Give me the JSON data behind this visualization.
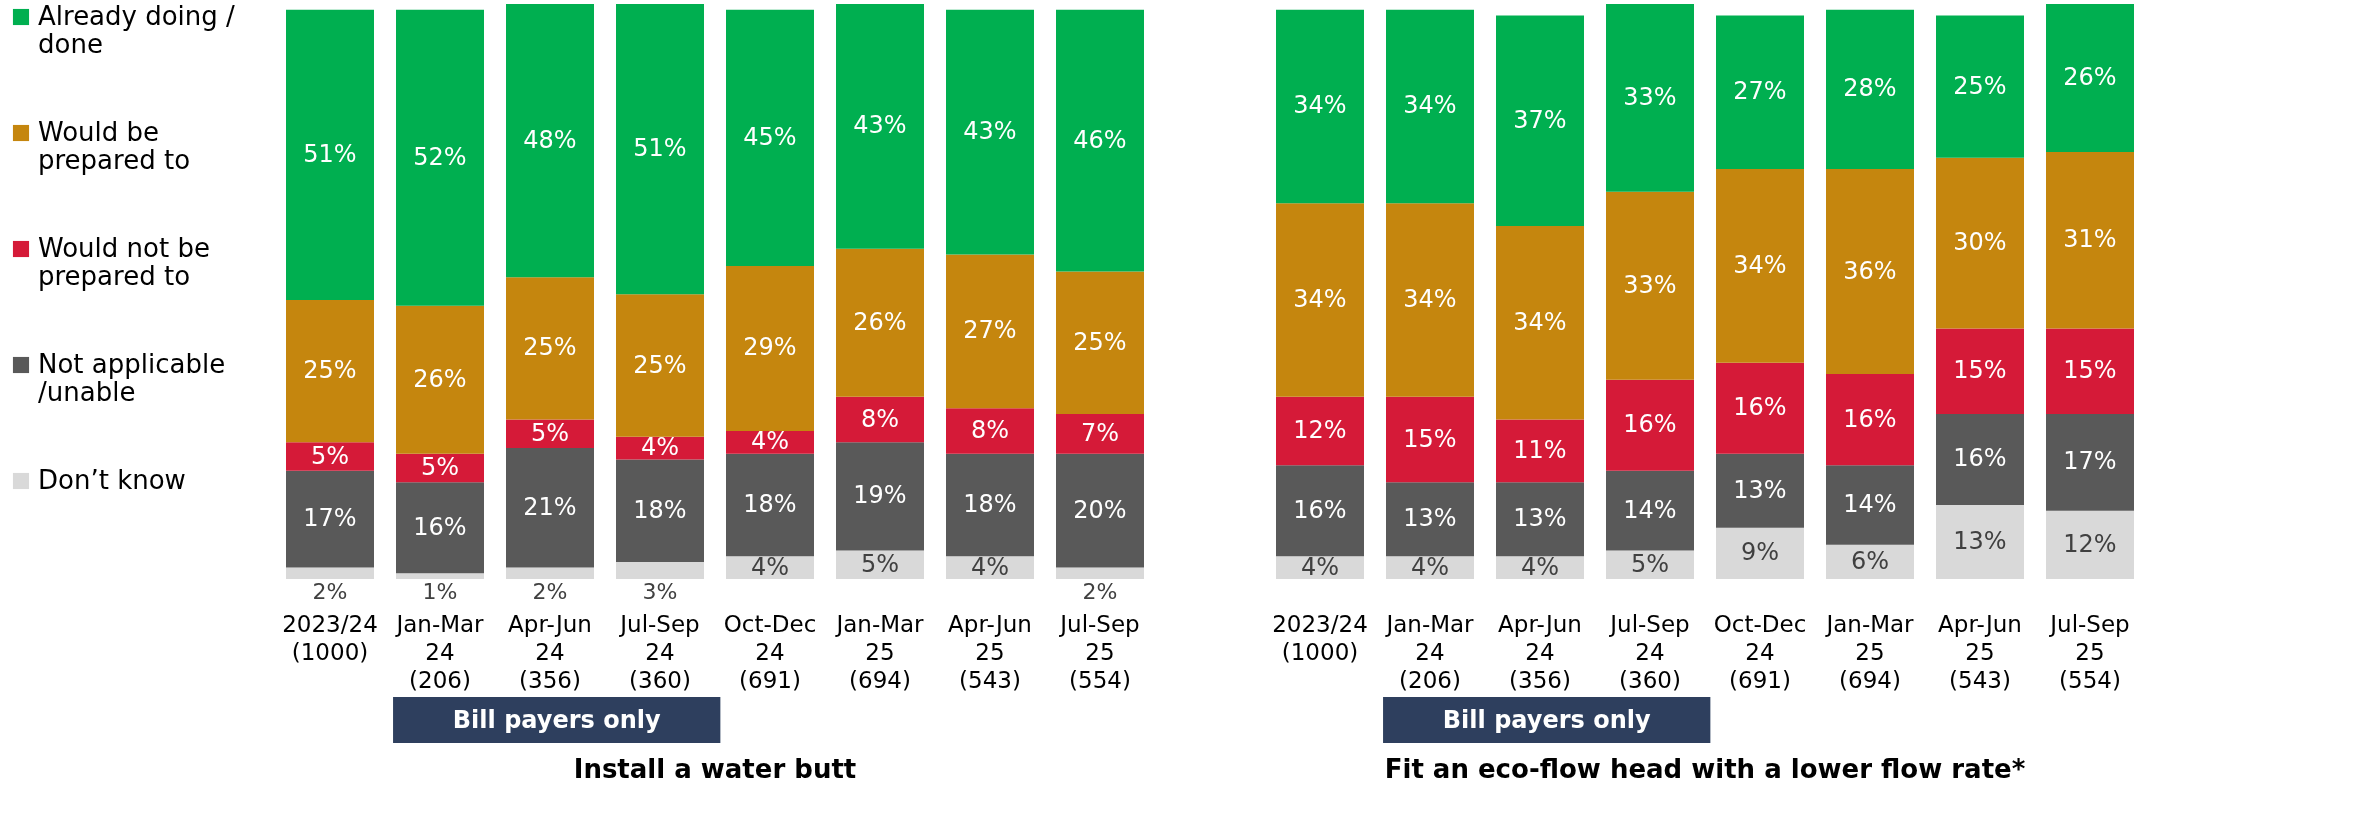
{
  "chart_data": [
    {
      "type": "bar",
      "stacked": true,
      "title": "Install a water butt",
      "legend": "left",
      "tick_labels": "x",
      "annotations": [
        "Bill payers only"
      ],
      "categories": [
        "2023/24 (1000)",
        "Jan-Mar 24 (206)",
        "Apr-Jun 24 (356)",
        "Jul-Sep 24 (360)",
        "Oct-Dec 24 (691)",
        "Jan-Mar 25 (694)",
        "Apr-Jun 25 (543)",
        "Jul-Sep 25 (554)"
      ],
      "series": [
        {
          "name": "Don’t know",
          "color": "#d9d9d9",
          "values": [
            2,
            1,
            2,
            3,
            4,
            5,
            4,
            2
          ],
          "value_labels": [
            "2%",
            "1%",
            "2%",
            "3%",
            "4%",
            "5%",
            "4%",
            "2%"
          ]
        },
        {
          "name": "Not applicable /unable",
          "color": "#595959",
          "values": [
            17,
            16,
            21,
            18,
            18,
            19,
            18,
            20
          ],
          "value_labels": [
            "17%",
            "16%",
            "21%",
            "18%",
            "18%",
            "19%",
            "18%",
            "20%"
          ]
        },
        {
          "name": "Would not be prepared to",
          "color": "#d51a38",
          "values": [
            5,
            5,
            5,
            4,
            4,
            8,
            8,
            7
          ],
          "value_labels": [
            "5%",
            "5%",
            "5%",
            "4%",
            "4%",
            "8%",
            "8%",
            "7%"
          ]
        },
        {
          "name": "Would be prepared to",
          "color": "#c5860e",
          "values": [
            25,
            26,
            25,
            25,
            29,
            26,
            27,
            25
          ],
          "value_labels": [
            "25%",
            "26%",
            "25%",
            "25%",
            "29%",
            "26%",
            "27%",
            "25%"
          ]
        },
        {
          "name": "Already doing / done",
          "color": "#00af50",
          "values": [
            51,
            52,
            48,
            51,
            45,
            43,
            43,
            46
          ],
          "value_labels": [
            "51%",
            "52%",
            "48%",
            "51%",
            "45%",
            "43%",
            "43%",
            "46%"
          ]
        }
      ]
    },
    {
      "type": "bar",
      "stacked": true,
      "title": "Fit an eco-flow head with a lower flow rate*",
      "tick_labels": "x",
      "annotations": [
        "Bill payers only"
      ],
      "categories": [
        "2023/24 (1000)",
        "Jan-Mar 24 (206)",
        "Apr-Jun 24 (356)",
        "Jul-Sep 24 (360)",
        "Oct-Dec 24 (691)",
        "Jan-Mar 25 (694)",
        "Apr-Jun 25 (543)",
        "Jul-Sep 25 (554)"
      ],
      "series": [
        {
          "name": "Don’t know",
          "color": "#d9d9d9",
          "values": [
            4,
            4,
            4,
            5,
            9,
            6,
            13,
            12
          ],
          "value_labels": [
            "4%",
            "4%",
            "4%",
            "5%",
            "9%",
            "6%",
            "13%",
            "12%"
          ]
        },
        {
          "name": "Not applicable /unable",
          "color": "#595959",
          "values": [
            16,
            13,
            13,
            14,
            13,
            14,
            16,
            17
          ],
          "value_labels": [
            "16%",
            "13%",
            "13%",
            "14%",
            "13%",
            "14%",
            "16%",
            "17%"
          ]
        },
        {
          "name": "Would not be prepared to",
          "color": "#d51a38",
          "values": [
            12,
            15,
            11,
            16,
            16,
            16,
            15,
            15
          ],
          "value_labels": [
            "12%",
            "15%",
            "11%",
            "16%",
            "16%",
            "16%",
            "15%",
            "15%"
          ]
        },
        {
          "name": "Would be prepared to",
          "color": "#c5860e",
          "values": [
            34,
            34,
            34,
            33,
            34,
            36,
            30,
            31
          ],
          "value_labels": [
            "34%",
            "34%",
            "34%",
            "33%",
            "34%",
            "36%",
            "30%",
            "31%"
          ]
        },
        {
          "name": "Already doing / done",
          "color": "#00af50",
          "values": [
            34,
            34,
            37,
            33,
            27,
            28,
            25,
            26
          ],
          "value_labels": [
            "34%",
            "34%",
            "37%",
            "33%",
            "27%",
            "28%",
            "25%",
            "26%"
          ]
        }
      ]
    }
  ]
}
